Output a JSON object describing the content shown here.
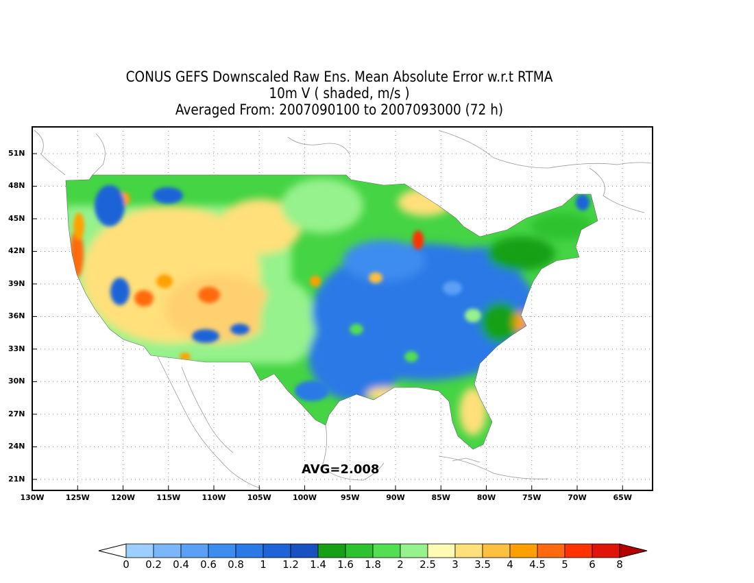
{
  "title": {
    "line1": "CONUS GEFS Downscaled Raw Ens. Mean Absolute Error w.r.t RTMA",
    "line2": "10m V ( shaded, m/s )",
    "line3": "Averaged From: 2007090100 to 2007093000 (72 h)"
  },
  "avg_label": "AVG=2.008",
  "map": {
    "projection": "lat-lon",
    "lon_range": [
      -130,
      -63
    ],
    "lat_range": [
      20,
      53
    ],
    "lat_ticks": [
      "51N",
      "48N",
      "45N",
      "42N",
      "39N",
      "36N",
      "33N",
      "30N",
      "27N",
      "24N",
      "21N"
    ],
    "lat_values": [
      51,
      48,
      45,
      42,
      39,
      36,
      33,
      30,
      27,
      24,
      21
    ],
    "lon_ticks": [
      "130W",
      "125W",
      "120W",
      "115W",
      "110W",
      "105W",
      "100W",
      "95W",
      "90W",
      "85W",
      "80W",
      "75W",
      "70W",
      "65W"
    ],
    "lon_values": [
      -130,
      -125,
      -120,
      -115,
      -110,
      -105,
      -100,
      -95,
      -90,
      -85,
      -80,
      -75,
      -70,
      -65
    ],
    "grid": true,
    "field": "10m V mean absolute error (m/s)",
    "regions": [
      {
        "area": "Southeast and Ohio Valley",
        "range": "1.0-1.4",
        "color": "#2a6fe0"
      },
      {
        "area": "Great Plains / Northern tier",
        "range": "1.4-2.5",
        "color": "#38c838"
      },
      {
        "area": "Intermountain West",
        "range": "2.5-4.0",
        "color": "#ffe48a"
      },
      {
        "area": "California coast / Lake Michigan",
        "range": "4.0-5.0",
        "color": "#ff6a10"
      }
    ]
  },
  "colorbar": {
    "labels": [
      "0",
      "0.2",
      "0.4",
      "0.6",
      "0.8",
      "1",
      "1.2",
      "1.4",
      "1.6",
      "1.8",
      "2",
      "2.5",
      "3",
      "3.5",
      "4",
      "4.5",
      "5",
      "6",
      "8"
    ],
    "colors": [
      "#ffffff",
      "#9ccefe",
      "#7bb6fb",
      "#5ca0f6",
      "#3d8cf0",
      "#2a79e6",
      "#1e64d8",
      "#1952c0",
      "#16a016",
      "#2fc22f",
      "#52e052",
      "#96f28c",
      "#fffab4",
      "#ffe07a",
      "#ffc040",
      "#ffa000",
      "#ff6a10",
      "#ff3200",
      "#e01408",
      "#b40000"
    ]
  }
}
